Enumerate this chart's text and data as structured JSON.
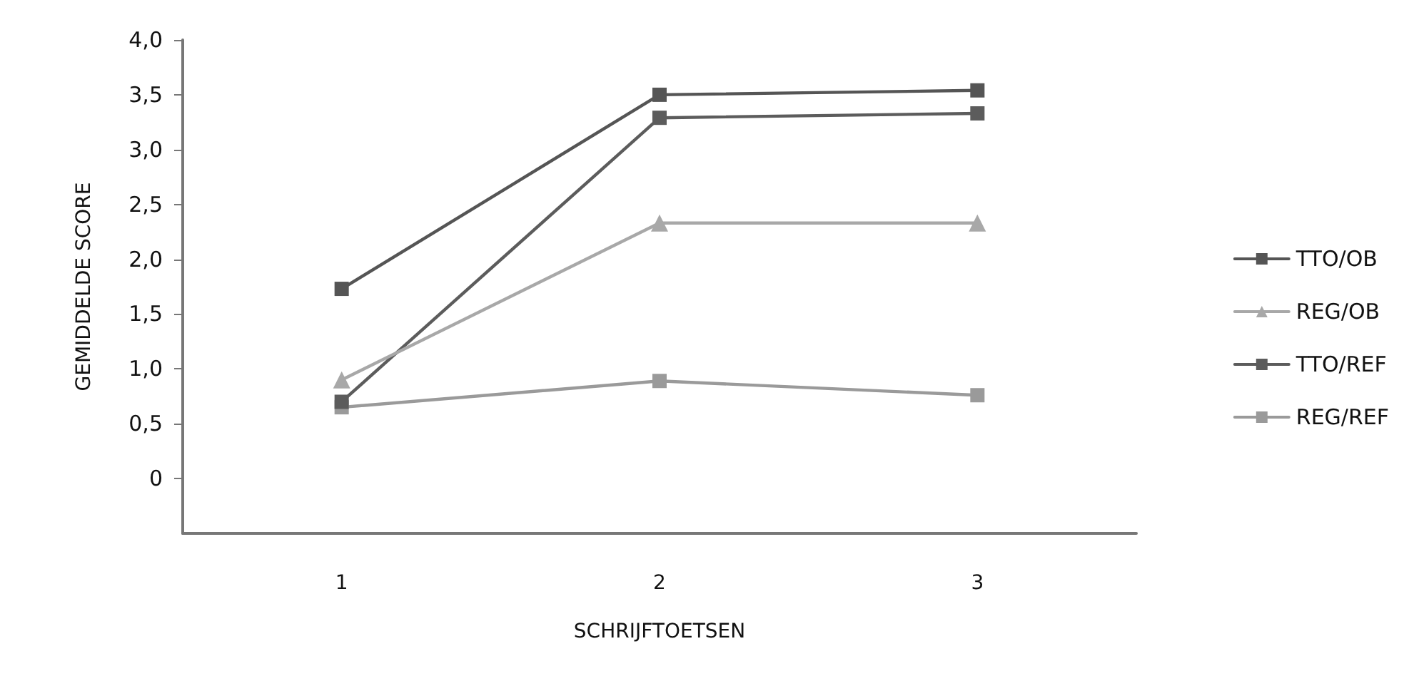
{
  "chart_data": {
    "type": "line",
    "xlabel": "SCHRIJFTOETSEN",
    "ylabel": "GEMIDDELDE SCORE",
    "categories": [
      "1",
      "2",
      "3"
    ],
    "series": [
      {
        "name": "TTO/OB",
        "color": "#555555",
        "marker": "square",
        "values": [
          1.73,
          3.5,
          3.54
        ]
      },
      {
        "name": "REG/OB",
        "color": "#a8a8a8",
        "marker": "triangle",
        "values": [
          0.9,
          2.33,
          2.33
        ]
      },
      {
        "name": "TTO/REF",
        "color": "#5c5c5c",
        "marker": "square",
        "values": [
          0.7,
          3.29,
          3.33
        ]
      },
      {
        "name": "REG/REF",
        "color": "#9a9a9a",
        "marker": "square",
        "values": [
          0.65,
          0.89,
          0.76
        ]
      }
    ],
    "ylim": [
      -0.5,
      4
    ],
    "yticks": [
      {
        "value": 0,
        "label": "0"
      },
      {
        "value": 0.5,
        "label": "0,5"
      },
      {
        "value": 1,
        "label": "1,0"
      },
      {
        "value": 1.5,
        "label": "1,5"
      },
      {
        "value": 2,
        "label": "2,0"
      },
      {
        "value": 2.5,
        "label": "2,5"
      },
      {
        "value": 3,
        "label": "3,0"
      },
      {
        "value": 3.5,
        "label": "3,5"
      },
      {
        "value": 4,
        "label": "4,0"
      }
    ],
    "grid": false,
    "legend": "right",
    "line_style": "solid"
  }
}
